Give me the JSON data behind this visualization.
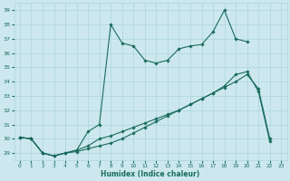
{
  "title": "",
  "xlabel": "Humidex (Indice chaleur)",
  "bg_color": "#cce8ee",
  "grid_color": "#aad4db",
  "line_color": "#1a6b5e",
  "xlim": [
    -0.5,
    23.5
  ],
  "ylim": [
    28.5,
    39.5
  ],
  "yticks": [
    29,
    30,
    31,
    32,
    33,
    34,
    35,
    36,
    37,
    38,
    39
  ],
  "xticks": [
    0,
    1,
    2,
    3,
    4,
    5,
    6,
    7,
    8,
    9,
    10,
    11,
    12,
    13,
    14,
    15,
    16,
    17,
    18,
    19,
    20,
    21,
    22,
    23
  ],
  "series": [
    {
      "x": [
        0,
        1,
        2,
        3,
        4,
        5,
        6,
        7,
        8,
        9,
        10,
        11,
        12,
        13,
        14,
        15,
        16,
        17,
        18,
        19,
        20,
        21,
        22
      ],
      "y": [
        30.1,
        30.0,
        29.0,
        28.8,
        29.0,
        29.1,
        29.3,
        29.5,
        29.7,
        30.0,
        30.4,
        30.8,
        31.2,
        31.6,
        32.0,
        32.4,
        32.8,
        33.2,
        33.6,
        34.0,
        34.5,
        33.5,
        30.0
      ]
    },
    {
      "x": [
        0,
        1,
        2,
        3,
        4,
        5,
        6,
        7,
        8,
        9,
        10,
        11,
        12,
        13,
        14,
        15,
        16,
        17,
        18,
        19,
        20
      ],
      "y": [
        30.1,
        30.0,
        29.0,
        28.8,
        29.0,
        29.2,
        30.5,
        31.0,
        38.0,
        36.7,
        36.5,
        35.5,
        35.3,
        35.5,
        36.3,
        36.5,
        36.6,
        37.5,
        39.0,
        37.0,
        36.8
      ]
    },
    {
      "x": [
        0,
        1,
        2,
        3,
        4,
        5,
        6,
        7,
        8,
        9,
        10,
        11,
        12,
        13,
        14,
        15,
        16,
        17,
        18,
        19,
        20,
        21,
        22
      ],
      "y": [
        30.1,
        30.0,
        29.0,
        28.8,
        29.0,
        29.2,
        29.5,
        30.0,
        30.2,
        30.5,
        30.8,
        31.1,
        31.4,
        31.7,
        32.0,
        32.4,
        32.8,
        33.2,
        33.7,
        34.5,
        34.7,
        33.3,
        29.8
      ]
    }
  ]
}
